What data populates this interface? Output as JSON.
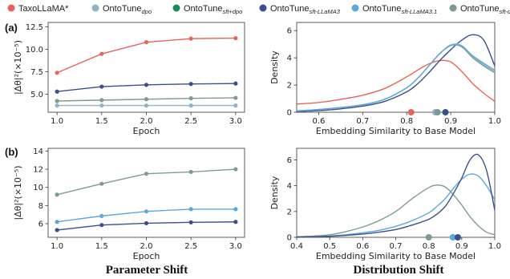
{
  "legend": [
    {
      "main": "TaxoLLaMA*",
      "sub": "",
      "color": "#e8645a"
    },
    {
      "main": "OntoTune",
      "sub": "dpo",
      "color": "#8fb2c9"
    },
    {
      "main": "OntoTune",
      "sub": "sft+dpo",
      "color": "#1e8a5a"
    },
    {
      "main": "OntoTune",
      "sub": "sft-LLaMA3",
      "color": "#3b4f8c"
    },
    {
      "main": "OntoTune",
      "sub": "sft-LLaMA3.1",
      "color": "#5aa9dc"
    },
    {
      "main": "OntoTune",
      "sub": "sft-deepseek",
      "color": "#7d9c91"
    }
  ],
  "panel_labels": {
    "a": "(a)",
    "b": "(b)"
  },
  "section_titles": {
    "left": "Parameter Shift",
    "right": "Distribution Shift"
  },
  "chart_data": [
    {
      "id": "a-param",
      "type": "line",
      "xlabel": "Epoch",
      "ylabel": "|Δθ|²(×10⁻⁵)",
      "xlim": [
        1.0,
        3.0
      ],
      "ylim": [
        3.0,
        13.0
      ],
      "xticks": [
        "1.0",
        "1.5",
        "2.0",
        "2.5",
        "3.0"
      ],
      "yticks": [
        "5.0",
        "7.5",
        "10.0",
        "12.5"
      ],
      "grid": false,
      "x": [
        1.0,
        1.5,
        2.0,
        2.5,
        3.0
      ],
      "series": [
        {
          "name": "TaxoLLaMA*",
          "color": "#e8645a",
          "values": [
            7.4,
            9.5,
            10.8,
            11.2,
            11.25
          ]
        },
        {
          "name": "OntoTune sft-LLaMA3",
          "color": "#3b4f8c",
          "values": [
            5.3,
            5.85,
            6.05,
            6.15,
            6.2
          ]
        },
        {
          "name": "OntoTune sft-deepseek",
          "color": "#7d9c91",
          "values": [
            4.25,
            4.35,
            4.45,
            4.55,
            4.6
          ]
        },
        {
          "name": "OntoTune dpo",
          "color": "#8fb2c9",
          "values": [
            3.75,
            3.75,
            3.75,
            3.75,
            3.75
          ]
        }
      ]
    },
    {
      "id": "a-dist",
      "type": "line",
      "xlabel": "Embedding Similarity to Base Model",
      "ylabel": "Density",
      "xlim": [
        0.55,
        1.0
      ],
      "ylim": [
        0,
        6.6
      ],
      "xticks": [
        "0.6",
        "0.7",
        "0.8",
        "0.9",
        "1.0"
      ],
      "yticks": [
        "0",
        "2",
        "4",
        "6"
      ],
      "grid": false,
      "x": [
        0.55,
        0.6,
        0.65,
        0.7,
        0.75,
        0.8,
        0.825,
        0.85,
        0.875,
        0.9,
        0.925,
        0.95,
        0.975,
        1.0
      ],
      "series": [
        {
          "name": "TaxoLLaMA*",
          "color": "#e8645a",
          "values": [
            0.6,
            0.72,
            0.95,
            1.25,
            1.75,
            2.6,
            3.1,
            3.55,
            3.8,
            3.7,
            3.0,
            2.1,
            1.4,
            0.8
          ]
        },
        {
          "name": "OntoTune sft-LLaMA3",
          "color": "#3b4f8c",
          "values": [
            0.05,
            0.12,
            0.25,
            0.45,
            0.8,
            1.5,
            2.1,
            2.9,
            3.8,
            4.6,
            5.3,
            5.7,
            5.3,
            3.4
          ]
        },
        {
          "name": "OntoTune sft-deepseek",
          "color": "#7d9c91",
          "values": [
            0.1,
            0.2,
            0.35,
            0.55,
            0.95,
            1.8,
            2.5,
            3.4,
            4.3,
            4.95,
            4.8,
            4.0,
            3.4,
            2.9
          ]
        },
        {
          "name": "OntoTune dpo",
          "color": "#8fb2c9",
          "values": [
            0.1,
            0.2,
            0.35,
            0.55,
            0.95,
            1.8,
            2.5,
            3.4,
            4.3,
            4.95,
            4.9,
            4.1,
            3.5,
            3.0
          ]
        },
        {
          "name": "OntoTune sft-LLaMA3.1",
          "color": "#5aa9dc",
          "values": [
            0.1,
            0.2,
            0.35,
            0.55,
            0.95,
            1.8,
            2.5,
            3.4,
            4.3,
            4.9,
            4.85,
            4.15,
            3.6,
            3.1
          ]
        }
      ],
      "markers": [
        {
          "x": 0.81,
          "color": "#e8645a"
        },
        {
          "x": 0.865,
          "color": "#8fb2c9"
        },
        {
          "x": 0.87,
          "color": "#7d9c91"
        },
        {
          "x": 0.888,
          "color": "#3b4f8c"
        }
      ]
    },
    {
      "id": "b-param",
      "type": "line",
      "xlabel": "Epoch",
      "ylabel": "|Δθ|²(×10⁻⁵)",
      "xlim": [
        1.0,
        3.0
      ],
      "ylim": [
        4.5,
        14.3
      ],
      "xticks": [
        "1.0",
        "1.5",
        "2.0",
        "2.5",
        "3.0"
      ],
      "yticks": [
        "6",
        "8",
        "10",
        "12",
        "14"
      ],
      "grid": false,
      "x": [
        1.0,
        1.5,
        2.0,
        2.5,
        3.0
      ],
      "series": [
        {
          "name": "OntoTune sft-deepseek",
          "color": "#7d9c91",
          "values": [
            9.2,
            10.4,
            11.5,
            11.7,
            12.0
          ]
        },
        {
          "name": "OntoTune sft-LLaMA3.1",
          "color": "#5aa9dc",
          "values": [
            6.2,
            6.85,
            7.35,
            7.6,
            7.6
          ]
        },
        {
          "name": "OntoTune sft-LLaMA3",
          "color": "#3b4f8c",
          "values": [
            5.3,
            5.85,
            6.05,
            6.15,
            6.2
          ]
        }
      ]
    },
    {
      "id": "b-dist",
      "type": "line",
      "xlabel": "Embedding Similarity to Base Model",
      "ylabel": "Density",
      "xlim": [
        0.4,
        1.0
      ],
      "ylim": [
        0,
        6.9
      ],
      "xticks": [
        "0.4",
        "0.5",
        "0.6",
        "0.7",
        "0.8",
        "0.9",
        "1.0"
      ],
      "yticks": [
        "0",
        "2",
        "4",
        "6"
      ],
      "grid": false,
      "x": [
        0.4,
        0.45,
        0.5,
        0.55,
        0.6,
        0.65,
        0.7,
        0.75,
        0.8,
        0.825,
        0.85,
        0.875,
        0.9,
        0.925,
        0.95,
        0.975,
        1.0
      ],
      "series": [
        {
          "name": "OntoTune sft-deepseek",
          "color": "#7d9c91",
          "values": [
            0.05,
            0.1,
            0.2,
            0.45,
            0.8,
            1.3,
            2.0,
            3.0,
            3.85,
            4.05,
            3.9,
            3.3,
            2.5,
            1.6,
            0.9,
            0.4,
            0.2
          ]
        },
        {
          "name": "OntoTune sft-LLaMA3.1",
          "color": "#5aa9dc",
          "values": [
            0.02,
            0.05,
            0.1,
            0.2,
            0.35,
            0.55,
            0.85,
            1.3,
            1.9,
            2.4,
            3.0,
            3.8,
            4.5,
            4.9,
            4.75,
            4.0,
            2.9
          ]
        },
        {
          "name": "OntoTune sft-LLaMA3",
          "color": "#3b4f8c",
          "values": [
            0.02,
            0.04,
            0.08,
            0.15,
            0.25,
            0.4,
            0.6,
            0.95,
            1.4,
            1.8,
            2.4,
            3.4,
            4.6,
            6.0,
            6.4,
            5.2,
            2.1
          ]
        }
      ],
      "markers": [
        {
          "x": 0.8,
          "color": "#7d9c91"
        },
        {
          "x": 0.873,
          "color": "#5aa9dc"
        },
        {
          "x": 0.888,
          "color": "#3b4f8c"
        }
      ]
    }
  ]
}
